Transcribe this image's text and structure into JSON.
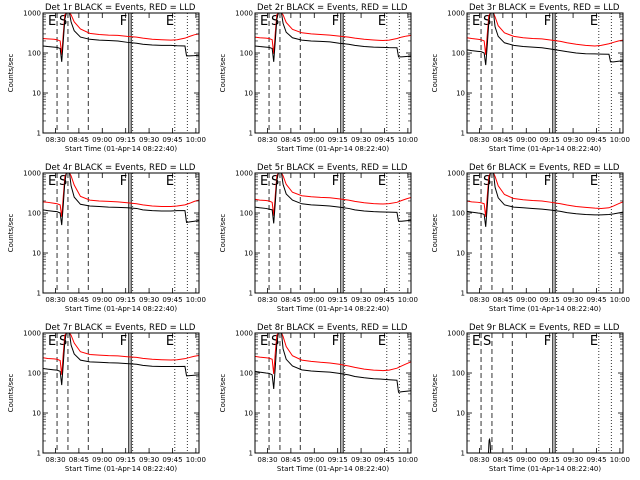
{
  "chart_data": {
    "type": "line",
    "layout": {
      "rows": 3,
      "cols": 3
    },
    "shared": {
      "x_tick_labels": [
        "08:30",
        "08:45",
        "09:00",
        "09:15",
        "09:30",
        "09:45",
        "10:00"
      ],
      "x_ticks_minutes": [
        30,
        45,
        60,
        75,
        90,
        105,
        120
      ],
      "xlim_minutes": [
        22,
        122
      ],
      "xlabel": "Start Time (01-Apr-14 08:22:40)",
      "ylabel": "Counts/sec",
      "y_scale": "log",
      "ylim": [
        1,
        1000
      ],
      "y_tick_labels": [
        "1",
        "10",
        "100",
        "1000"
      ],
      "y_tick_values": [
        1,
        10,
        100,
        1000
      ],
      "series_colors": {
        "events": "#000000",
        "lld": "#ff0000"
      },
      "vlines": [
        {
          "label": "E",
          "x": 31.0,
          "style": "dashed"
        },
        {
          "label": "S",
          "x": 38.0,
          "style": "dashed"
        },
        {
          "label": "",
          "x": 51.0,
          "style": "dashed"
        },
        {
          "label": "F",
          "x": 77.0,
          "style": "solid"
        },
        {
          "label": "",
          "x": 78.5,
          "style": "solid"
        },
        {
          "label": "",
          "x": 79.5,
          "style": "dotted"
        },
        {
          "label": "E",
          "x": 106.5,
          "style": "dotted"
        },
        {
          "label": "",
          "x": 114.5,
          "style": "dotted"
        }
      ]
    },
    "panels": [
      {
        "title": "Det  1r BLACK = Events, RED = LLD",
        "events": {
          "x": [
            22,
            25,
            29,
            31,
            33,
            34,
            35,
            36,
            37,
            38,
            39,
            40,
            42,
            46,
            52,
            58,
            64,
            70,
            76,
            82,
            86,
            92,
            98,
            104,
            108,
            113,
            114,
            116,
            119,
            122
          ],
          "y": [
            150,
            145,
            140,
            138,
            130,
            60,
            200,
            700,
            1000,
            1000,
            1000,
            600,
            360,
            250,
            220,
            210,
            205,
            200,
            185,
            175,
            165,
            158,
            155,
            155,
            152,
            150,
            85,
            85,
            86,
            88
          ]
        },
        "lld": {
          "x": [
            22,
            25,
            29,
            31,
            33,
            34,
            35,
            36,
            37,
            38,
            39,
            40,
            42,
            46,
            52,
            58,
            64,
            70,
            76,
            82,
            86,
            92,
            98,
            104,
            108,
            113,
            116,
            119,
            122
          ],
          "y": [
            230,
            225,
            220,
            215,
            200,
            90,
            300,
            900,
            1000,
            1000,
            1000,
            900,
            600,
            400,
            310,
            290,
            280,
            275,
            260,
            250,
            235,
            220,
            215,
            210,
            215,
            235,
            260,
            285,
            300
          ]
        }
      },
      {
        "title": "Det  2r BLACK = Events, RED = LLD",
        "events": {
          "x": [
            22,
            25,
            29,
            31,
            33,
            34,
            35,
            36,
            37,
            38,
            39,
            40,
            42,
            46,
            52,
            58,
            64,
            70,
            76,
            82,
            86,
            92,
            98,
            104,
            108,
            113,
            114,
            116,
            119,
            122
          ],
          "y": [
            150,
            145,
            140,
            138,
            130,
            60,
            200,
            700,
            1000,
            1000,
            1000,
            550,
            330,
            240,
            210,
            200,
            195,
            190,
            175,
            165,
            155,
            145,
            140,
            138,
            136,
            135,
            80,
            80,
            82,
            84
          ]
        },
        "lld": {
          "x": [
            22,
            25,
            29,
            31,
            33,
            34,
            35,
            36,
            37,
            38,
            39,
            40,
            42,
            46,
            52,
            58,
            64,
            70,
            76,
            82,
            86,
            92,
            98,
            104,
            108,
            113,
            116,
            119,
            122
          ],
          "y": [
            250,
            240,
            235,
            230,
            215,
            95,
            320,
            900,
            1000,
            1000,
            1000,
            900,
            580,
            390,
            320,
            300,
            290,
            280,
            265,
            250,
            235,
            220,
            212,
            205,
            210,
            230,
            250,
            265,
            275
          ]
        }
      },
      {
        "title": "Det  3r BLACK = Events, RED = LLD",
        "events": {
          "x": [
            22,
            25,
            29,
            31,
            33,
            34,
            35,
            36,
            37,
            38,
            39,
            40,
            42,
            46,
            52,
            58,
            64,
            70,
            76,
            82,
            86,
            92,
            98,
            104,
            108,
            113,
            114,
            116,
            119,
            122
          ],
          "y": [
            120,
            115,
            110,
            108,
            100,
            50,
            160,
            600,
            1000,
            1000,
            1000,
            450,
            260,
            180,
            155,
            145,
            140,
            135,
            125,
            115,
            108,
            100,
            96,
            95,
            94,
            93,
            60,
            60,
            62,
            64
          ]
        },
        "lld": {
          "x": [
            22,
            25,
            29,
            31,
            33,
            34,
            35,
            36,
            37,
            38,
            39,
            40,
            42,
            46,
            52,
            58,
            64,
            70,
            76,
            82,
            86,
            92,
            98,
            104,
            108,
            113,
            116,
            119,
            122
          ],
          "y": [
            240,
            230,
            220,
            215,
            200,
            90,
            300,
            850,
            1000,
            1000,
            1000,
            800,
            480,
            320,
            260,
            240,
            230,
            225,
            210,
            195,
            180,
            165,
            155,
            150,
            155,
            170,
            185,
            200,
            210
          ]
        }
      },
      {
        "title": "Det  4r BLACK = Events, RED = LLD",
        "events": {
          "x": [
            22,
            25,
            29,
            31,
            33,
            34,
            35,
            36,
            37,
            38,
            39,
            40,
            42,
            46,
            52,
            58,
            64,
            70,
            76,
            82,
            86,
            92,
            98,
            104,
            108,
            113,
            114,
            116,
            119,
            122
          ],
          "y": [
            120,
            115,
            110,
            108,
            100,
            50,
            160,
            600,
            1000,
            1000,
            1000,
            480,
            250,
            165,
            150,
            145,
            140,
            138,
            135,
            130,
            120,
            115,
            112,
            112,
            115,
            115,
            58,
            60,
            62,
            65
          ]
        },
        "lld": {
          "x": [
            22,
            25,
            29,
            31,
            33,
            34,
            35,
            36,
            37,
            38,
            39,
            40,
            42,
            46,
            52,
            58,
            64,
            70,
            76,
            82,
            86,
            92,
            98,
            104,
            108,
            113,
            116,
            119,
            122
          ],
          "y": [
            190,
            185,
            175,
            170,
            160,
            80,
            260,
            800,
            1000,
            1000,
            1000,
            850,
            500,
            260,
            210,
            200,
            195,
            190,
            180,
            170,
            160,
            150,
            145,
            145,
            150,
            160,
            175,
            195,
            210
          ]
        }
      },
      {
        "title": "Det  5r BLACK = Events, RED = LLD",
        "events": {
          "x": [
            22,
            25,
            29,
            31,
            33,
            34,
            35,
            36,
            37,
            38,
            39,
            40,
            42,
            46,
            52,
            58,
            64,
            70,
            76,
            82,
            86,
            92,
            98,
            104,
            108,
            113,
            114,
            116,
            119,
            122
          ],
          "y": [
            140,
            135,
            130,
            125,
            120,
            55,
            180,
            650,
            1000,
            1000,
            1000,
            520,
            300,
            210,
            170,
            160,
            155,
            150,
            140,
            130,
            120,
            112,
            108,
            106,
            105,
            104,
            62,
            62,
            64,
            66
          ]
        },
        "lld": {
          "x": [
            22,
            25,
            29,
            31,
            33,
            34,
            35,
            36,
            37,
            38,
            39,
            40,
            42,
            46,
            52,
            58,
            64,
            70,
            76,
            82,
            86,
            92,
            98,
            104,
            108,
            113,
            116,
            119,
            122
          ],
          "y": [
            220,
            210,
            205,
            200,
            185,
            85,
            280,
            850,
            1000,
            1000,
            1000,
            850,
            520,
            330,
            270,
            255,
            245,
            240,
            225,
            210,
            195,
            180,
            172,
            168,
            172,
            185,
            205,
            225,
            245
          ]
        }
      },
      {
        "title": "Det  6r BLACK = Events, RED = LLD",
        "events": {
          "x": [
            22,
            25,
            29,
            31,
            33,
            34,
            35,
            36,
            37,
            38,
            39,
            40,
            42,
            46,
            52,
            58,
            64,
            70,
            76,
            82,
            86,
            92,
            98,
            104,
            108,
            113,
            116,
            119,
            122
          ],
          "y": [
            110,
            105,
            100,
            98,
            92,
            45,
            150,
            580,
            1000,
            1000,
            1000,
            440,
            240,
            160,
            140,
            135,
            130,
            125,
            118,
            110,
            102,
            96,
            92,
            90,
            90,
            92,
            95,
            100,
            105
          ]
        },
        "lld": {
          "x": [
            22,
            25,
            29,
            31,
            33,
            34,
            35,
            36,
            37,
            38,
            39,
            40,
            42,
            46,
            52,
            58,
            64,
            70,
            76,
            82,
            86,
            92,
            98,
            104,
            108,
            113,
            116,
            119,
            122
          ],
          "y": [
            200,
            190,
            185,
            180,
            170,
            80,
            270,
            820,
            1000,
            1000,
            1000,
            820,
            480,
            290,
            230,
            215,
            205,
            200,
            185,
            170,
            158,
            145,
            138,
            132,
            130,
            135,
            150,
            170,
            190
          ]
        }
      },
      {
        "title": "Det  7r BLACK = Events, RED = LLD",
        "events": {
          "x": [
            22,
            25,
            29,
            31,
            33,
            34,
            35,
            36,
            37,
            38,
            39,
            40,
            42,
            46,
            52,
            58,
            64,
            70,
            76,
            82,
            86,
            92,
            98,
            104,
            108,
            113,
            114,
            116,
            119,
            122
          ],
          "y": [
            130,
            125,
            120,
            118,
            110,
            50,
            170,
            620,
            1000,
            1000,
            1000,
            500,
            300,
            210,
            190,
            185,
            180,
            178,
            172,
            165,
            155,
            148,
            145,
            145,
            145,
            146,
            85,
            86,
            88,
            90
          ]
        },
        "lld": {
          "x": [
            22,
            25,
            29,
            31,
            33,
            34,
            35,
            36,
            37,
            38,
            39,
            40,
            42,
            46,
            52,
            58,
            64,
            70,
            76,
            82,
            86,
            92,
            98,
            104,
            108,
            113,
            116,
            119,
            122
          ],
          "y": [
            240,
            230,
            225,
            220,
            205,
            90,
            310,
            880,
            1000,
            1000,
            1000,
            880,
            560,
            340,
            290,
            280,
            272,
            268,
            255,
            245,
            232,
            220,
            215,
            212,
            215,
            228,
            245,
            262,
            275
          ]
        }
      },
      {
        "title": "Det  8r BLACK = Events, RED = LLD",
        "events": {
          "x": [
            22,
            25,
            29,
            31,
            33,
            34,
            35,
            36,
            37,
            38,
            39,
            40,
            42,
            46,
            52,
            58,
            64,
            70,
            76,
            82,
            86,
            92,
            98,
            104,
            108,
            113,
            114,
            116,
            119,
            122
          ],
          "y": [
            110,
            105,
            100,
            98,
            90,
            40,
            140,
            550,
            1000,
            1000,
            1000,
            400,
            220,
            150,
            120,
            112,
            108,
            105,
            98,
            90,
            82,
            76,
            72,
            70,
            68,
            66,
            33,
            34,
            35,
            36
          ]
        },
        "lld": {
          "x": [
            22,
            25,
            29,
            31,
            33,
            34,
            35,
            36,
            37,
            38,
            39,
            40,
            42,
            46,
            52,
            58,
            64,
            70,
            76,
            82,
            86,
            92,
            98,
            104,
            108,
            113,
            116,
            119,
            122
          ],
          "y": [
            260,
            250,
            240,
            235,
            220,
            95,
            320,
            880,
            1000,
            1000,
            1000,
            820,
            460,
            270,
            210,
            195,
            185,
            178,
            165,
            150,
            138,
            125,
            118,
            115,
            118,
            132,
            150,
            170,
            190
          ]
        }
      },
      {
        "title": "Det  9r BLACK = Events, RED = LLD",
        "events": {
          "x": [
            35.8,
            36,
            36.2,
            36.5,
            36.8,
            37,
            37.2
          ],
          "y": [
            1,
            1.6,
            2.1,
            2.2,
            1.8,
            1.3,
            1
          ]
        },
        "lld": {
          "x": [],
          "y": []
        }
      }
    ]
  }
}
